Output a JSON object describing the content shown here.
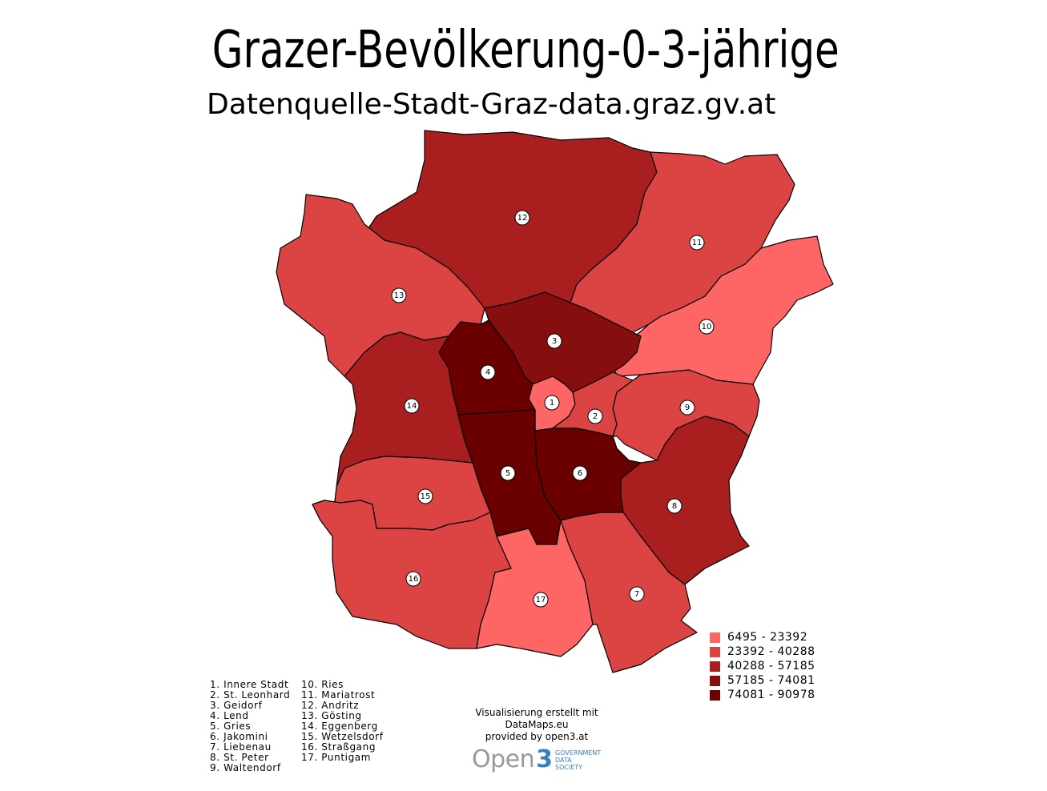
{
  "title": "Grazer-Bevölkerung-0-3-jährige",
  "subtitle": "Datenquelle-Stadt-Graz-data.graz.gv.at",
  "legend": {
    "classes": [
      {
        "label": "6495 - 23392",
        "color": "#fe6666"
      },
      {
        "label": "23392 - 40288",
        "color": "#dc4444"
      },
      {
        "label": "40288 - 57185",
        "color": "#a91f1f"
      },
      {
        "label": "57185 - 74081",
        "color": "#860e0e"
      },
      {
        "label": "74081 - 90978",
        "color": "#6a0000"
      }
    ]
  },
  "districts": [
    {
      "num": "1",
      "cls": 0
    },
    {
      "num": "2",
      "cls": 1
    },
    {
      "num": "3",
      "cls": 3
    },
    {
      "num": "4",
      "cls": 4
    },
    {
      "num": "5",
      "cls": 4
    },
    {
      "num": "6",
      "cls": 4
    },
    {
      "num": "7",
      "cls": 1
    },
    {
      "num": "8",
      "cls": 2
    },
    {
      "num": "9",
      "cls": 1
    },
    {
      "num": "10",
      "cls": 0
    },
    {
      "num": "11",
      "cls": 1
    },
    {
      "num": "12",
      "cls": 2
    },
    {
      "num": "13",
      "cls": 1
    },
    {
      "num": "14",
      "cls": 2
    },
    {
      "num": "15",
      "cls": 1
    },
    {
      "num": "16",
      "cls": 1
    },
    {
      "num": "17",
      "cls": 0
    }
  ],
  "district_names_left": [
    "1. Innere Stadt",
    "2. St. Leonhard",
    "3. Geidorf",
    "4. Lend",
    "5. Gries",
    "6. Jakomini",
    "7. Liebenau",
    "8. St. Peter",
    "9. Waltendorf"
  ],
  "district_names_right": [
    "10. Ries",
    "11. Mariatrost",
    "12. Andritz",
    "13. Gösting",
    "14. Eggenberg",
    "15. Wetzelsdorf",
    "16. Straßgang",
    "17. Puntigam"
  ],
  "credit": {
    "line1": "Visualisierung erstellt mit",
    "line2": "DataMaps.eu",
    "line3": "provided by open3.at"
  },
  "logo": {
    "word": "Open",
    "digit": "3",
    "tagline": [
      "GOVERNMENT",
      "DATA",
      "SOCIETY"
    ]
  }
}
